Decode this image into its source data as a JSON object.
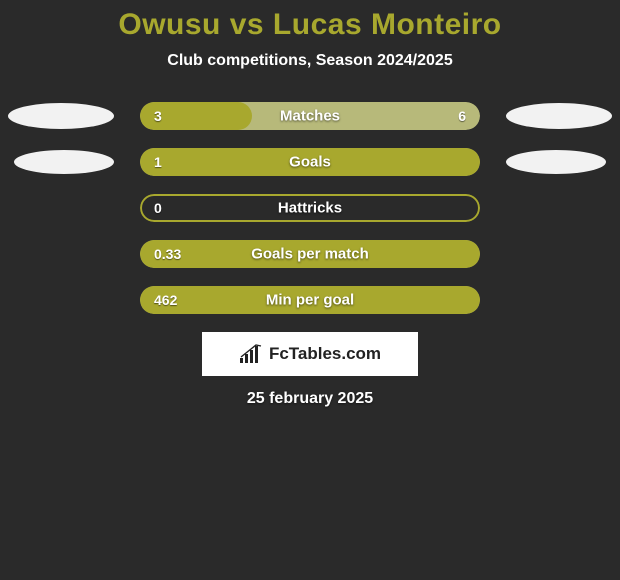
{
  "title": "Owusu vs Lucas Monteiro",
  "subtitle": "Club competitions, Season 2024/2025",
  "date": "25 february 2025",
  "logo_text": "FcTables.com",
  "colors": {
    "background": "#2a2a2a",
    "accent": "#a8a82e",
    "track_bg": "#b7b97a",
    "fill": "#a8a82e",
    "ellipse": "#f2f2f2",
    "text_white": "#ffffff"
  },
  "side_ellipses": {
    "row0": true,
    "row1": true
  },
  "bars": [
    {
      "label": "Matches",
      "left": "3",
      "right": "6",
      "fill_pct": 33,
      "track_color": "#b7b97a",
      "fill_color": "#a8a82e"
    },
    {
      "label": "Goals",
      "left": "1",
      "right": "",
      "fill_pct": 100,
      "track_color": "#b7b97a",
      "fill_color": "#a8a82e"
    },
    {
      "label": "Hattricks",
      "left": "0",
      "right": "",
      "fill_pct": 0,
      "track_color": "#2a2a2a",
      "fill_color": "#a8a82e",
      "outline": true
    },
    {
      "label": "Goals per match",
      "left": "0.33",
      "right": "",
      "fill_pct": 100,
      "track_color": "#b7b97a",
      "fill_color": "#a8a82e"
    },
    {
      "label": "Min per goal",
      "left": "462",
      "right": "",
      "fill_pct": 100,
      "track_color": "#b7b97a",
      "fill_color": "#a8a82e"
    }
  ]
}
